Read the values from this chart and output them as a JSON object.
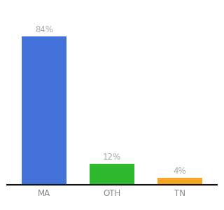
{
  "categories": [
    "MA",
    "OTH",
    "TN"
  ],
  "values": [
    84,
    12,
    4
  ],
  "bar_colors": [
    "#4472db",
    "#2db82d",
    "#f5a623"
  ],
  "label_texts": [
    "84%",
    "12%",
    "4%"
  ],
  "ylim": [
    0,
    95
  ],
  "background_color": "#ffffff",
  "label_color": "#aaaaaa",
  "label_fontsize": 8.5,
  "tick_fontsize": 8.5,
  "bar_width": 0.65,
  "bar_positions": [
    0,
    1,
    2
  ]
}
